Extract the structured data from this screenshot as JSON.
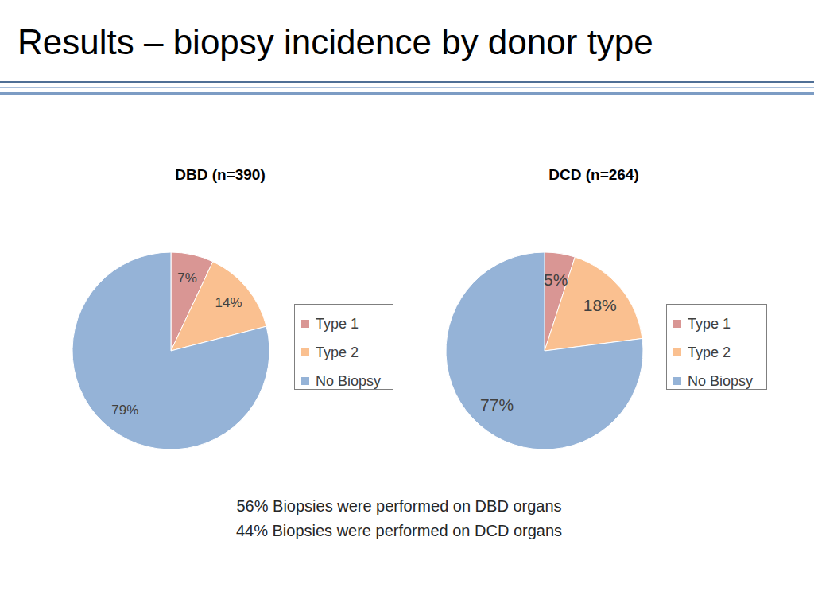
{
  "title": "Results – biopsy incidence by donor type",
  "chart_data": [
    {
      "type": "pie",
      "title": "DBD (n=390)",
      "categories": [
        "Type 1",
        "Type 2",
        "No Biopsy"
      ],
      "values": [
        7,
        14,
        79
      ],
      "value_labels": [
        "7%",
        "14%",
        "79%"
      ],
      "colors": [
        "#d99694",
        "#fac090",
        "#95b3d7"
      ],
      "data_labels": true,
      "legend": "right"
    },
    {
      "type": "pie",
      "title": "DCD (n=264)",
      "categories": [
        "Type 1",
        "Type 2",
        "No Biopsy"
      ],
      "values": [
        5,
        18,
        77
      ],
      "value_labels": [
        "5%",
        "18%",
        "77%"
      ],
      "colors": [
        "#d99694",
        "#fac090",
        "#95b3d7"
      ],
      "data_labels": true,
      "legend": "right"
    }
  ],
  "annotations": [
    "56% Biopsies were performed on DBD organs",
    "44% Biopsies were performed on DCD organs"
  ]
}
